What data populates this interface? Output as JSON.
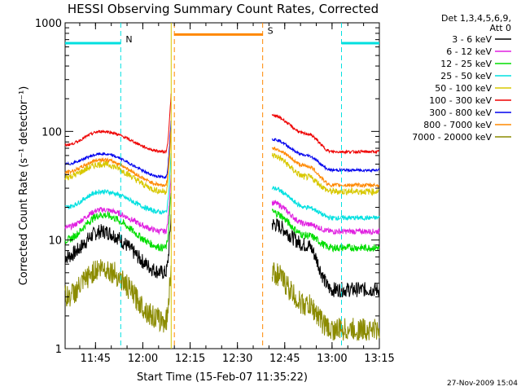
{
  "chart_data": {
    "type": "line",
    "title": "HESSI Observing Summary Count Rates, Corrected",
    "xlabel": "Start Time (15-Feb-07 11:35:22)",
    "ylabel": "Corrected Count Rate (s⁻¹ detector⁻¹)",
    "yscale": "log",
    "ylim": [
      1,
      1000
    ],
    "xlim": [
      "11:35:22",
      "13:15"
    ],
    "x_ticks": [
      "11:45",
      "12:00",
      "12:15",
      "12:30",
      "12:45",
      "13:00",
      "13:15"
    ],
    "y_ticks": [
      "1",
      "10",
      "100",
      "1000"
    ],
    "grid": false,
    "legend_position": "right",
    "legend_header": [
      "Det 1,3,4,5,6,9,",
      "Att 0"
    ],
    "footer_date": "27-Nov-2009 15:04",
    "data_gaps": [
      [
        "12:09",
        "12:41"
      ]
    ],
    "series": [
      {
        "name": "3 - 6 keV",
        "color": "#000000",
        "shape": [
          7,
          12,
          5,
          14,
          9,
          3.5,
          3.5
        ],
        "noise": 0.16
      },
      {
        "name": "6 - 12 keV",
        "color": "#e020e0",
        "shape": [
          13,
          19,
          12,
          22,
          14,
          12,
          12
        ],
        "noise": 0.06
      },
      {
        "name": "12 - 25 keV",
        "color": "#00dd00",
        "shape": [
          10,
          17,
          8.5,
          18,
          11,
          8.5,
          8.5
        ],
        "noise": 0.08
      },
      {
        "name": "25 - 50 keV",
        "color": "#00e0e0",
        "shape": [
          20,
          28,
          18,
          30,
          20,
          16,
          16
        ],
        "noise": 0.05
      },
      {
        "name": "50 - 100 keV",
        "color": "#d8c800",
        "shape": [
          38,
          50,
          28,
          60,
          38,
          28,
          28
        ],
        "noise": 0.07
      },
      {
        "name": "100 - 300 keV",
        "color": "#ee0000",
        "shape": [
          75,
          100,
          65,
          140,
          95,
          65,
          65
        ],
        "noise": 0.03
      },
      {
        "name": "300 - 800 keV",
        "color": "#0000ee",
        "shape": [
          50,
          62,
          38,
          85,
          60,
          44,
          44
        ],
        "noise": 0.03
      },
      {
        "name": "800 - 7000 keV",
        "color": "#ff8800",
        "shape": [
          42,
          55,
          32,
          70,
          48,
          32,
          32
        ],
        "noise": 0.04
      },
      {
        "name": "7000 - 20000 keV",
        "color": "#8b8b00",
        "shape": [
          3,
          5.5,
          1.8,
          5,
          2.5,
          1.5,
          1.5
        ],
        "noise": 0.25
      }
    ],
    "flags": [
      {
        "label": "N",
        "color": "#00e0e0",
        "intervals": [
          [
            "11:35:22",
            "11:53"
          ],
          [
            "13:03",
            "13:15"
          ]
        ],
        "level": 650
      },
      {
        "label": "S",
        "color": "#ff8800",
        "intervals": [
          [
            "12:10",
            "12:38"
          ]
        ],
        "level": 780
      }
    ]
  }
}
